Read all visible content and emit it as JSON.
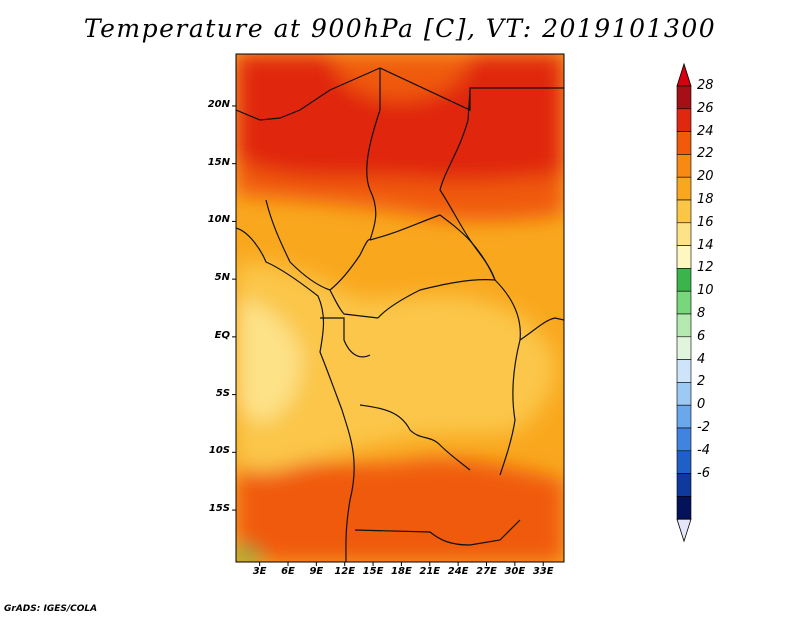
{
  "title": "Temperature at 900hPa [C], VT: 2019101300",
  "credit": "GrADS: IGES/COLA",
  "map": {
    "lat_labels": [
      "20N",
      "15N",
      "10N",
      "5N",
      "EQ",
      "5S",
      "10S",
      "15S"
    ],
    "lon_labels": [
      "3E",
      "6E",
      "9E",
      "12E",
      "15E",
      "18E",
      "21E",
      "24E",
      "27E",
      "30E",
      "33E"
    ],
    "lat_range": [
      -19.5,
      24.5
    ],
    "lon_range": [
      0.5,
      35.2
    ],
    "variable": "Temperature at 900hPa",
    "unit": "C",
    "valid_time": "2019101300"
  },
  "colorbar": {
    "labels": [
      "28",
      "26",
      "24",
      "22",
      "20",
      "18",
      "16",
      "14",
      "12",
      "10",
      "8",
      "6",
      "4",
      "2",
      "0",
      "-2",
      "-4",
      "-6"
    ],
    "bins": [
      {
        "color": "#a50f15"
      },
      {
        "color": "#e02810"
      },
      {
        "color": "#f05a0a"
      },
      {
        "color": "#f78a15"
      },
      {
        "color": "#f9a81e"
      },
      {
        "color": "#fbc648"
      },
      {
        "color": "#fde288"
      },
      {
        "color": "#fff7c0"
      },
      {
        "color": "#3cb44b"
      },
      {
        "color": "#78d77a"
      },
      {
        "color": "#b4eab0"
      },
      {
        "color": "#e0f5dc"
      },
      {
        "color": "#cde4fa"
      },
      {
        "color": "#9ccaf5"
      },
      {
        "color": "#6aa8ee"
      },
      {
        "color": "#3f84e0"
      },
      {
        "color": "#1f5fc8"
      },
      {
        "color": "#0e3aa0"
      },
      {
        "color": "#04125a"
      }
    ],
    "top_color": "#d6000e",
    "bottom_color": "#e6e6fa"
  },
  "regions": [
    {
      "name": "north-belt-hot",
      "color": "#e02810"
    },
    {
      "name": "sahel-band",
      "color": "#f05a0a"
    },
    {
      "name": "central-plateau",
      "color": "#f9a81e"
    },
    {
      "name": "congo-basin",
      "color": "#fbc648"
    },
    {
      "name": "coastal-cool",
      "color": "#fde288"
    },
    {
      "name": "angola-hot",
      "color": "#f05a0a"
    },
    {
      "name": "southwest-cool-patch",
      "color": "#3cb44b"
    }
  ]
}
